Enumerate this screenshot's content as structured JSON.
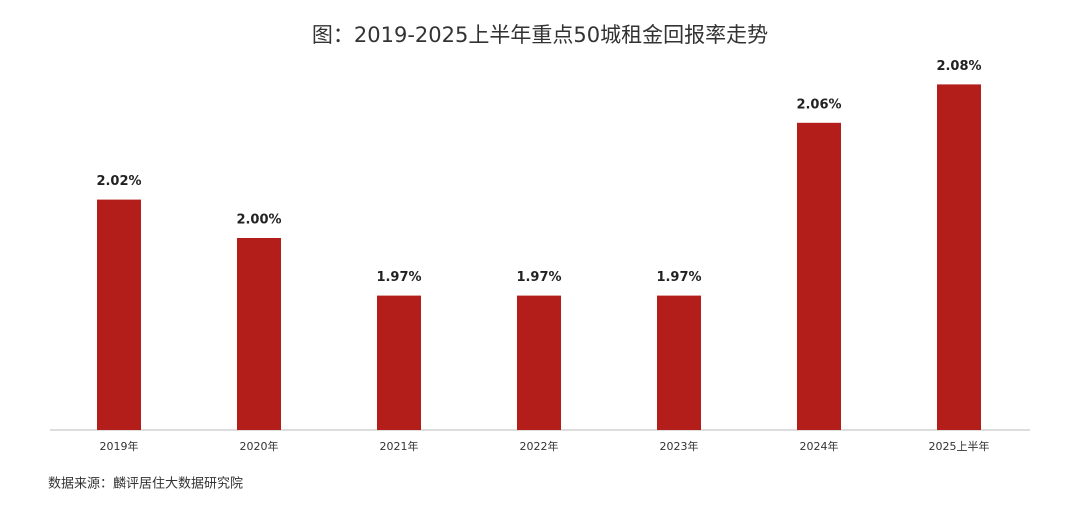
{
  "chart_data": {
    "type": "bar",
    "title": "图：2019-2025上半年重点50城租金回报率走势",
    "categories": [
      "2019年",
      "2020年",
      "2021年",
      "2022年",
      "2023年",
      "2024年",
      "2025上半年"
    ],
    "values": [
      2.02,
      2.0,
      1.97,
      1.97,
      1.97,
      2.06,
      2.08
    ],
    "value_labels": [
      "2.02%",
      "2.00%",
      "1.97%",
      "1.97%",
      "1.97%",
      "2.06%",
      "2.08%"
    ],
    "color": "#b31e1b",
    "ylim": [
      1.9,
      2.1
    ],
    "source": "数据来源：麟评居住大数据研究院"
  }
}
